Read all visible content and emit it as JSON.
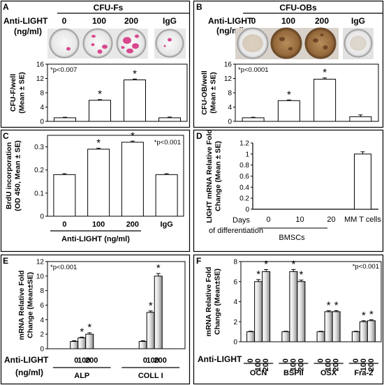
{
  "panels": {
    "A": {
      "letter": "A",
      "header": "CFU-Fs",
      "treatment_label": "Anti-LIGHT",
      "unit_label": "(ng/ml)",
      "dish_labels": [
        "0",
        "100",
        "200",
        "IgG"
      ]
    },
    "B": {
      "letter": "B",
      "header": "CFU-OBs",
      "treatment_label": "Anti-LIGHT",
      "unit_label": "(ng/ml)",
      "dish_labels": [
        "0",
        "100",
        "200",
        "IgG"
      ]
    },
    "C": {
      "letter": "C",
      "xlabel": "Anti-LIGHT (ng/ml)"
    },
    "D": {
      "letter": "D",
      "days_label": "Days",
      "diff_label": "of differentiation",
      "group_label": "BMSCs"
    },
    "E": {
      "letter": "E",
      "treatment_label": "Anti-LIGHT",
      "unit_label": "(ng/ml)"
    },
    "F": {
      "letter": "F",
      "treatment_label": "Anti-LIGHT"
    }
  },
  "colors": {
    "axis": "#000000",
    "bar_white": "#ffffff",
    "bar_grad_light": "#ffffff",
    "bar_grad_dark": "#8a8a8a",
    "dish_pink": "#d9478f",
    "dish_brown": "#9b7043",
    "dish_white": "#eeeeee"
  },
  "chart_data": [
    {
      "id": "A",
      "type": "bar",
      "categories": [
        "0",
        "100",
        "200",
        "IgG"
      ],
      "values": [
        1.0,
        5.9,
        11.6,
        1.0
      ],
      "errors": [
        0.15,
        0.2,
        0.25,
        0.2
      ],
      "ylabel": "CFU-F/well (Mean ± SE)",
      "ylim": [
        0,
        16
      ],
      "yticks": [
        "0",
        "4",
        "8",
        "12",
        "16"
      ],
      "annotation": "*p<0.007",
      "significant": [
        false,
        true,
        true,
        false
      ]
    },
    {
      "id": "B",
      "type": "bar",
      "categories": [
        "0",
        "100",
        "200",
        "IgG"
      ],
      "values": [
        1.0,
        5.8,
        11.8,
        1.3
      ],
      "errors": [
        0.15,
        0.2,
        0.35,
        0.5
      ],
      "ylabel": "CFU-OB/well (Mean ± SE)",
      "ylim": [
        0,
        16
      ],
      "yticks": [
        "0",
        "4",
        "8",
        "12",
        "16"
      ],
      "annotation": "*p<0.0001",
      "significant": [
        false,
        true,
        true,
        false
      ]
    },
    {
      "id": "C",
      "type": "bar",
      "categories": [
        "0",
        "100",
        "200",
        "IgG"
      ],
      "values": [
        0.18,
        0.29,
        0.32,
        0.18
      ],
      "errors": [
        0.004,
        0.004,
        0.005,
        0.004
      ],
      "ylabel": "BrdU incorporation (OD 450, Mean ± SE)",
      "ylim": [
        0,
        0.35
      ],
      "yticks": [
        "0",
        "0.1",
        "0.2",
        "0.3"
      ],
      "annotation": "*p<0.001",
      "significant": [
        false,
        true,
        true,
        false
      ]
    },
    {
      "id": "D",
      "type": "bar",
      "categories": [
        "0",
        "10",
        "20",
        "MM T cells"
      ],
      "values": [
        0,
        0,
        0,
        1.0
      ],
      "errors": [
        0,
        0,
        0,
        0.04
      ],
      "ylabel": "LIGHT mRNA Relative Fold Change (Mean ± SE)",
      "ylim": [
        0,
        1.2
      ],
      "yticks": [
        "0",
        "0.2",
        "0.4",
        "0.6",
        "0.8",
        "1",
        "1.2"
      ]
    },
    {
      "id": "E",
      "type": "bar",
      "groups": [
        "ALP",
        "COLL I"
      ],
      "sub_categories": [
        "0",
        "100",
        "200"
      ],
      "series_values": [
        [
          1.0,
          1.5,
          2.0
        ],
        [
          1.0,
          5.0,
          10.0
        ]
      ],
      "errors": [
        [
          0.1,
          0.1,
          0.2
        ],
        [
          0.1,
          0.2,
          0.35
        ]
      ],
      "ylabel": "mRNA Relative Fold Change (Mean±SE)",
      "ylim": [
        0,
        12
      ],
      "yticks": [
        "0",
        "2",
        "4",
        "6",
        "8",
        "10",
        "12"
      ],
      "annotation": "*p<0.001",
      "significant": [
        [
          false,
          true,
          true
        ],
        [
          false,
          true,
          true
        ]
      ]
    },
    {
      "id": "F",
      "type": "bar",
      "groups": [
        "OCN",
        "BSPII",
        "OSX",
        "Fra-2"
      ],
      "sub_categories": [
        "0",
        "100",
        "200"
      ],
      "series_values": [
        [
          1.0,
          6.0,
          7.0
        ],
        [
          1.0,
          7.0,
          6.0
        ],
        [
          1.0,
          3.0,
          3.0
        ],
        [
          1.0,
          2.0,
          2.1
        ]
      ],
      "errors": [
        [
          0.05,
          0.2,
          0.2
        ],
        [
          0.05,
          0.2,
          0.15
        ],
        [
          0.05,
          0.1,
          0.1
        ],
        [
          0.05,
          0.1,
          0.1
        ]
      ],
      "ylabel": "mRNA Relative Fold Change (Mean±SE)",
      "ylim": [
        0,
        8
      ],
      "yticks": [
        "0",
        "2",
        "4",
        "6",
        "8"
      ],
      "annotation": "*p<0.001",
      "significant": [
        [
          false,
          true,
          true
        ],
        [
          false,
          true,
          true
        ],
        [
          false,
          true,
          true
        ],
        [
          false,
          true,
          true
        ]
      ]
    }
  ]
}
